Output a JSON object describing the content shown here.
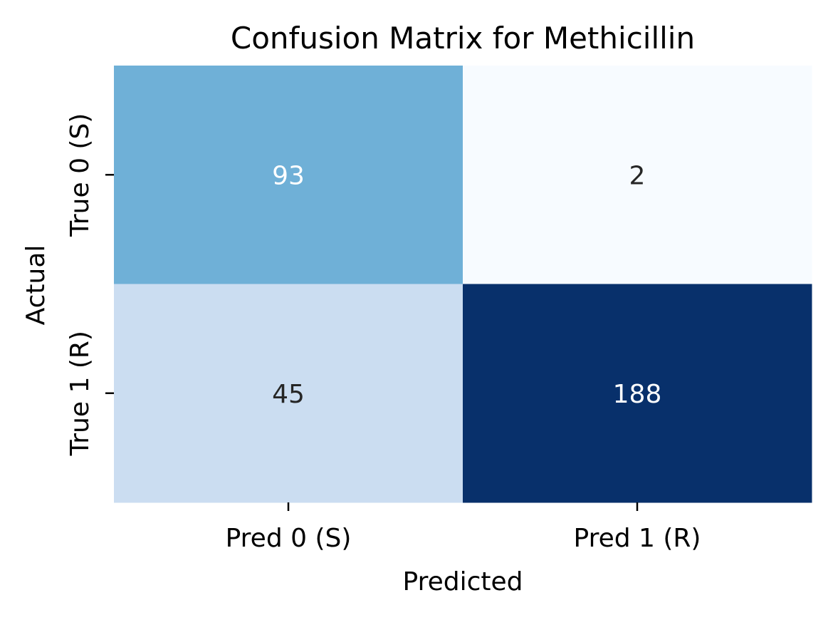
{
  "chart_data": {
    "type": "heatmap",
    "title": "Confusion Matrix for Methicillin",
    "xlabel": "Predicted",
    "ylabel": "Actual",
    "x_categories": [
      "Pred 0 (S)",
      "Pred 1 (R)"
    ],
    "y_categories": [
      "True 0 (S)",
      "True 1 (R)"
    ],
    "values": [
      [
        93,
        2
      ],
      [
        45,
        188
      ]
    ],
    "colormap": "Blues",
    "colorbar": false,
    "cell_colors": [
      [
        "#6fb0d7",
        "#f7fbff"
      ],
      [
        "#cbddf1",
        "#08306b"
      ]
    ],
    "annotation_colors": [
      [
        "#ffffff",
        "#262626"
      ],
      [
        "#262626",
        "#ffffff"
      ]
    ]
  }
}
